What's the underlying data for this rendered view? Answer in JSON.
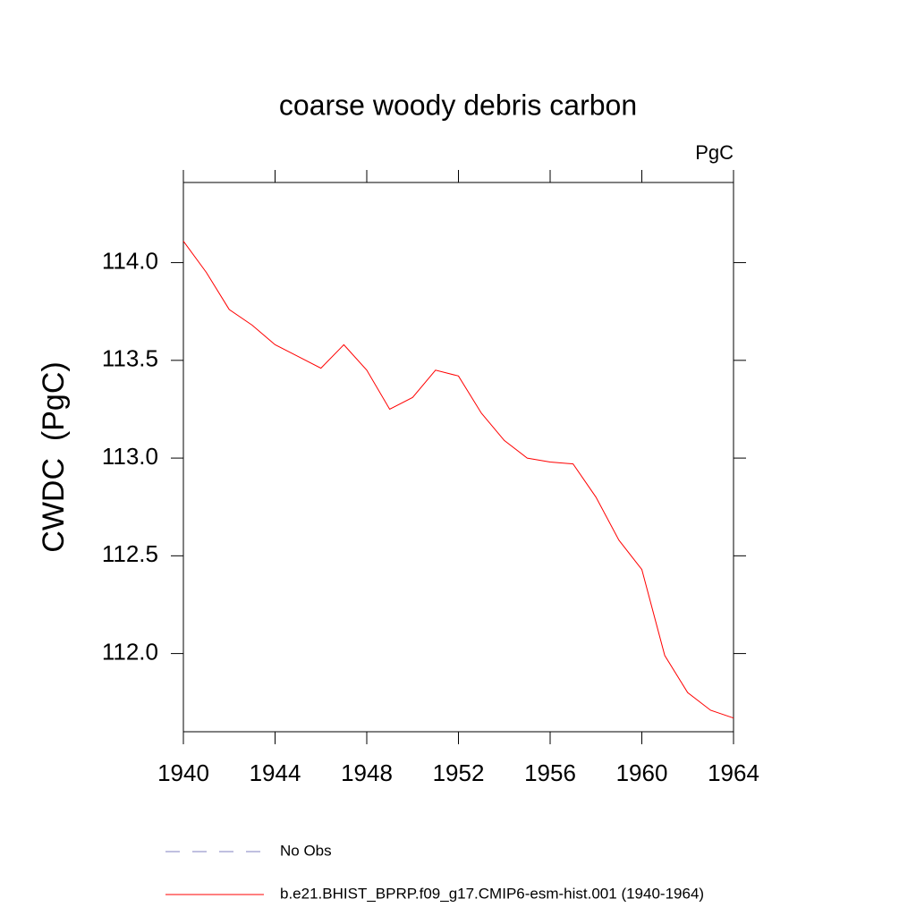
{
  "chart_data": {
    "type": "line",
    "title": "coarse woody debris carbon",
    "units": "PgC",
    "y_label": "CWDC  (PgC)",
    "x": [
      1940,
      1941,
      1942,
      1943,
      1944,
      1945,
      1946,
      1947,
      1948,
      1949,
      1950,
      1951,
      1952,
      1953,
      1954,
      1955,
      1956,
      1957,
      1958,
      1959,
      1960,
      1961,
      1962,
      1963,
      1964
    ],
    "series": [
      {
        "name": "b.e21.BHIST_BPRP.f09_g17.CMIP6-esm-hist.001 (1940-1964)",
        "color": "#ff0000",
        "values": [
          114.11,
          113.95,
          113.76,
          113.68,
          113.58,
          113.52,
          113.46,
          113.58,
          113.45,
          113.25,
          113.31,
          113.45,
          113.42,
          113.23,
          113.09,
          113.0,
          112.98,
          112.97,
          112.8,
          112.58,
          112.43,
          111.99,
          111.8,
          111.71,
          111.67
        ]
      }
    ],
    "legend_extra": [
      {
        "name": "No Obs",
        "color": "#8080c0",
        "dashed": true
      }
    ],
    "xlim": [
      1940,
      1964
    ],
    "xticks": [
      1940,
      1944,
      1948,
      1952,
      1956,
      1960,
      1964
    ],
    "ylim": [
      111.6,
      114.41
    ],
    "yticks": [
      {
        "value": 112,
        "label": "112.0"
      },
      {
        "value": 112.5,
        "label": "112.5"
      },
      {
        "value": 113,
        "label": "113.0"
      },
      {
        "value": 113.5,
        "label": "113.5"
      },
      {
        "value": 114,
        "label": "114.0"
      }
    ],
    "grid": false
  }
}
